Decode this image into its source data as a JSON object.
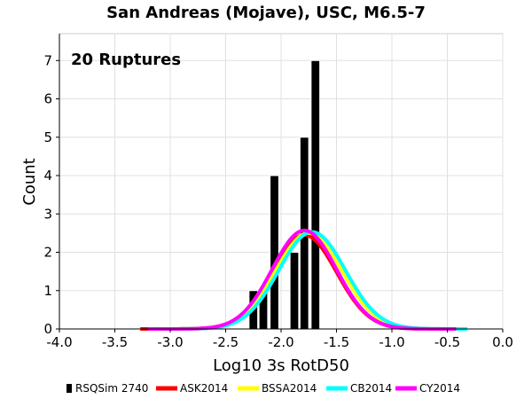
{
  "chart_data": {
    "type": "histogram",
    "title": "San Andreas (Mojave), USC, M6.5-7",
    "annotation": "20 Ruptures",
    "xlabel": "Log10 3s RotD50",
    "ylabel": "Count",
    "xlim": [
      -4.0,
      0.0
    ],
    "ylim": [
      0,
      7.7
    ],
    "xticks": [
      "-4.0",
      "-3.5",
      "-3.0",
      "-2.5",
      "-2.0",
      "-1.5",
      "-1.0",
      "-0.5",
      "0.0"
    ],
    "yticks": [
      "0",
      "1",
      "2",
      "3",
      "4",
      "5",
      "6",
      "7"
    ],
    "grid": true,
    "bar_width": 0.078,
    "bars": [
      {
        "x": -2.25,
        "count": 1
      },
      {
        "x": -2.16,
        "count": 1
      },
      {
        "x": -2.06,
        "count": 4
      },
      {
        "x": -1.88,
        "count": 2
      },
      {
        "x": -1.79,
        "count": 5
      },
      {
        "x": -1.69,
        "count": 7
      }
    ],
    "series": [
      {
        "name": "RSQSim 2740",
        "kind": "bars",
        "color": "#000000"
      },
      {
        "name": "ASK2014",
        "kind": "curve",
        "color": "#ff0000",
        "mean": -1.79,
        "sigma": 0.29,
        "peak": 2.45,
        "x_range": [
          -3.27,
          -0.32
        ]
      },
      {
        "name": "BSSA2014",
        "kind": "curve",
        "color": "#ffff00",
        "mean": -1.75,
        "sigma": 0.3,
        "peak": 2.5,
        "x_range": [
          -3.2,
          -0.35
        ]
      },
      {
        "name": "CB2014",
        "kind": "curve",
        "color": "#00ffff",
        "mean": -1.72,
        "sigma": 0.3,
        "peak": 2.53,
        "x_range": [
          -3.2,
          -0.32
        ]
      },
      {
        "name": "CY2014",
        "kind": "curve",
        "color": "#ff00ff",
        "mean": -1.79,
        "sigma": 0.29,
        "peak": 2.57,
        "x_range": [
          -3.2,
          -0.42
        ]
      }
    ]
  }
}
